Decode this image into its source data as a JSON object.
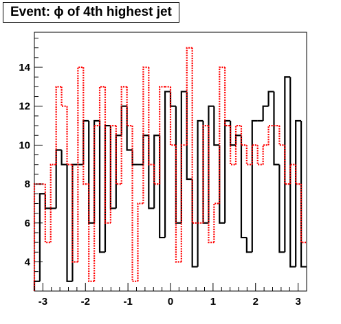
{
  "chart_data": {
    "type": "step",
    "title": "Event: ϕ of 4th highest jet",
    "xlabel": "",
    "ylabel": "",
    "xlim": [
      -3.2,
      3.2
    ],
    "ylim": [
      2.5,
      15.8
    ],
    "grid": false,
    "legend": "none",
    "x_ticks": [
      -3,
      -2,
      -1,
      0,
      1,
      2,
      3
    ],
    "y_ticks": [
      4,
      6,
      8,
      10,
      12,
      14
    ],
    "bins": 50,
    "series": [
      {
        "color": "#000000",
        "style": "solid",
        "values": [
          3.0,
          7.5,
          6.75,
          6.75,
          9.75,
          9.0,
          3.0,
          9.0,
          9.0,
          11.25,
          6.0,
          11.25,
          4.5,
          11.0,
          6.75,
          10.5,
          12.0,
          9.75,
          9.0,
          9.0,
          10.5,
          6.75,
          10.5,
          5.25,
          12.75,
          12.0,
          6.0,
          12.75,
          8.25,
          3.75,
          11.25,
          6.0,
          12.0,
          10.0,
          6.0,
          11.25,
          10.0,
          10.5,
          5.25,
          4.5,
          11.25,
          11.25,
          12.0,
          12.75,
          9.0,
          4.5,
          13.5,
          3.75,
          11.25,
          3.75
        ]
      },
      {
        "color": "#ff0000",
        "style": "dotted",
        "values": [
          8.0,
          8.0,
          5.0,
          9.0,
          13.0,
          12.0,
          9.0,
          4.0,
          14.0,
          8.0,
          3.0,
          11.0,
          13.0,
          6.0,
          11.0,
          8.0,
          13.0,
          11.0,
          3.0,
          7.0,
          14.0,
          9.0,
          8.0,
          13.0,
          13.0,
          10.0,
          4.0,
          10.0,
          15.0,
          6.0,
          6.0,
          11.0,
          5.0,
          7.0,
          14.0,
          11.0,
          9.0,
          11.0,
          10.0,
          9.0,
          10.0,
          9.0,
          10.0,
          11.0,
          11.0,
          10.0,
          8.0,
          9.0,
          8.0,
          5.0
        ]
      }
    ]
  }
}
